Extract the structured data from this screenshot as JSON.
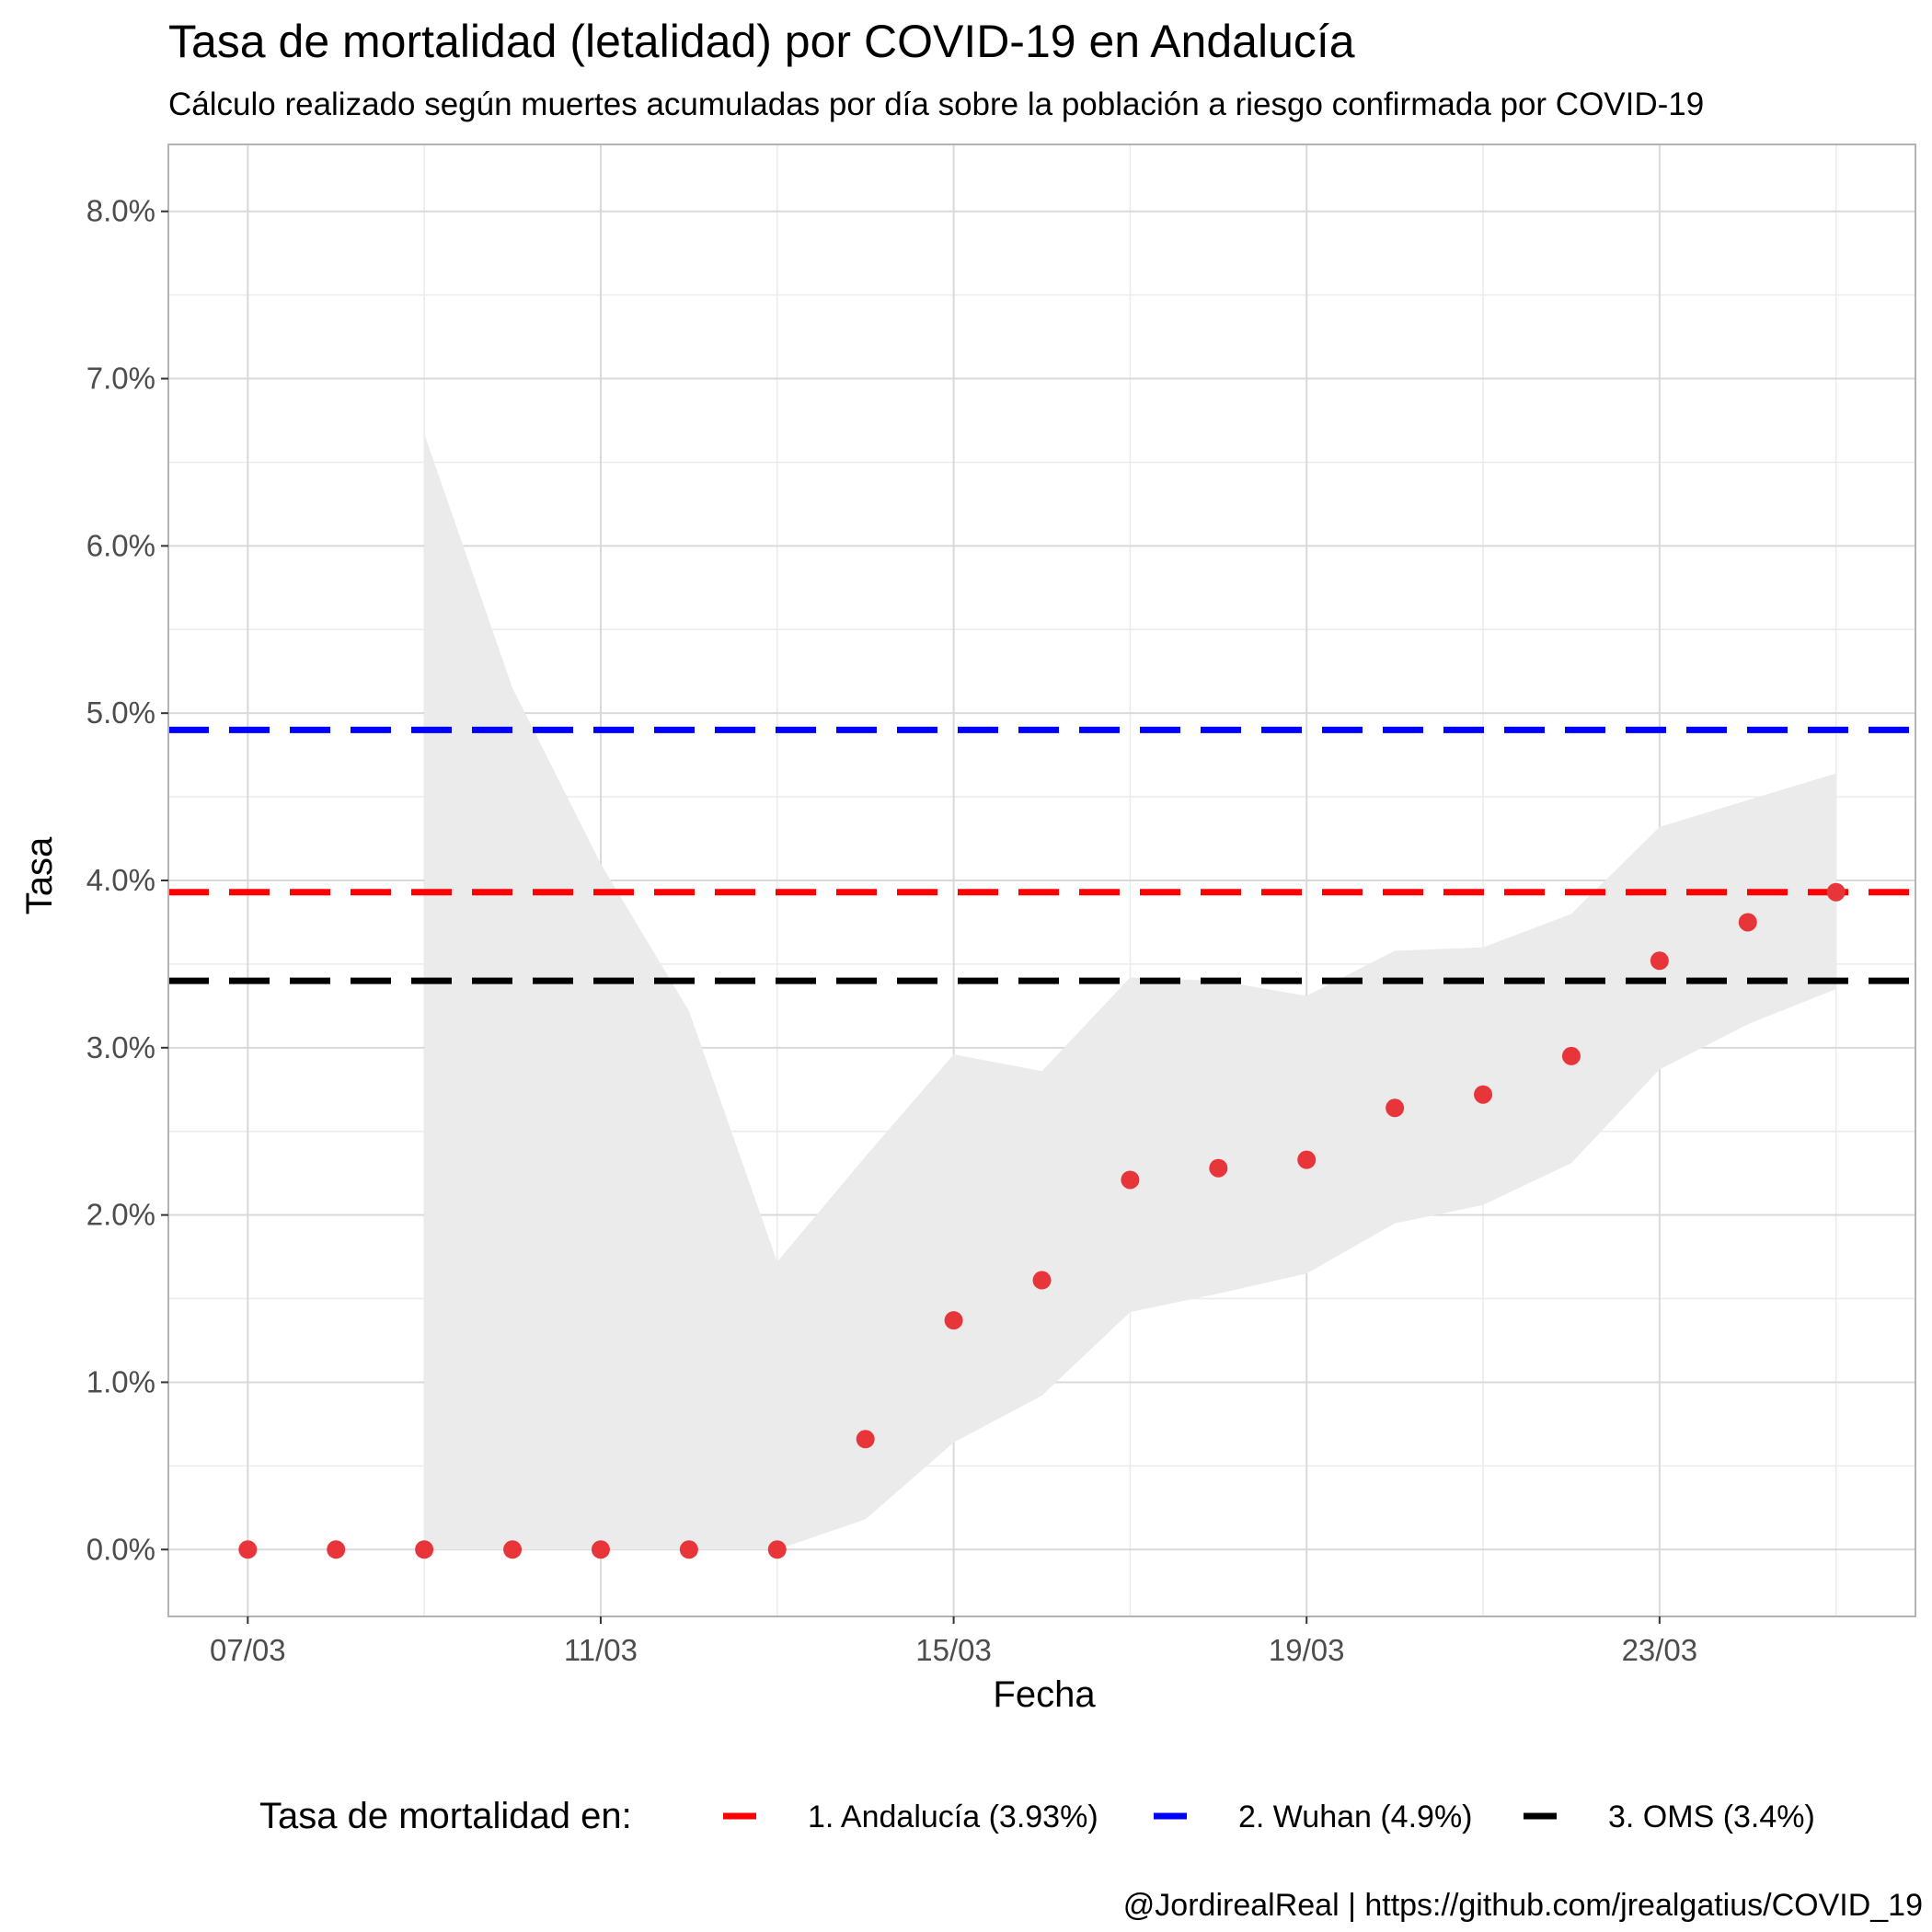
{
  "chart_data": {
    "type": "scatter",
    "title": "Tasa de mortalidad (letalidad) por COVID-19 en Andalucía",
    "subtitle": "Cálculo realizado según muertes acumuladas por día sobre la población a riesgo confirmada por COVID-19",
    "xlabel": "Fecha",
    "ylabel": "Tasa",
    "caption": "@JordirealReal | https://github.com/jrealgatius/COVID_19",
    "x_ticks": [
      "07/03",
      "11/03",
      "15/03",
      "19/03",
      "23/03"
    ],
    "y_ticks": [
      "0.0%",
      "1.0%",
      "2.0%",
      "3.0%",
      "4.0%",
      "5.0%",
      "6.0%",
      "7.0%",
      "8.0%"
    ],
    "ylim": [
      -0.4,
      8.4
    ],
    "grid": true,
    "legend": {
      "title": "Tasa de mortalidad en:",
      "position": "bottom",
      "entries": [
        {
          "label": "1. Andalucía (3.93%)",
          "color": "#ff0000"
        },
        {
          "label": "2. Wuhan (4.9%)",
          "color": "#0000ff"
        },
        {
          "label": "3. OMS (3.4%)",
          "color": "#000000"
        }
      ]
    },
    "points": {
      "color": "#e8353a",
      "x": [
        "07/03",
        "08/03",
        "09/03",
        "10/03",
        "11/03",
        "12/03",
        "13/03",
        "14/03",
        "15/03",
        "16/03",
        "17/03",
        "18/03",
        "19/03",
        "20/03",
        "21/03",
        "22/03",
        "23/03",
        "24/03",
        "25/03"
      ],
      "y": [
        0,
        0,
        0,
        0,
        0,
        0,
        0,
        0.66,
        1.37,
        1.61,
        2.21,
        2.28,
        2.33,
        2.64,
        2.72,
        2.95,
        3.52,
        3.75,
        3.93
      ]
    },
    "confidence_band": {
      "color": "#ebebeb",
      "x": [
        "09/03",
        "10/03",
        "11/03",
        "12/03",
        "13/03",
        "14/03",
        "15/03",
        "16/03",
        "17/03",
        "18/03",
        "19/03",
        "20/03",
        "21/03",
        "22/03",
        "23/03",
        "24/03",
        "25/03"
      ],
      "lower": [
        0,
        0,
        0,
        0,
        0,
        0.18,
        0.64,
        0.92,
        1.42,
        1.53,
        1.65,
        1.95,
        2.06,
        2.31,
        2.87,
        3.14,
        3.35
      ],
      "upper": [
        6.67,
        5.15,
        4.1,
        3.22,
        1.72,
        2.35,
        2.96,
        2.86,
        3.42,
        3.4,
        3.31,
        3.58,
        3.6,
        3.8,
        4.32,
        4.48,
        4.64
      ]
    },
    "reference_lines": [
      {
        "name": "1. Andalucía (3.93%)",
        "y": 3.93,
        "color": "#ff0000",
        "dash": "dashed"
      },
      {
        "name": "2. Wuhan (4.9%)",
        "y": 4.9,
        "color": "#0000ff",
        "dash": "dashed"
      },
      {
        "name": "3. OMS (3.4%)",
        "y": 3.4,
        "color": "#000000",
        "dash": "dashed"
      }
    ]
  }
}
